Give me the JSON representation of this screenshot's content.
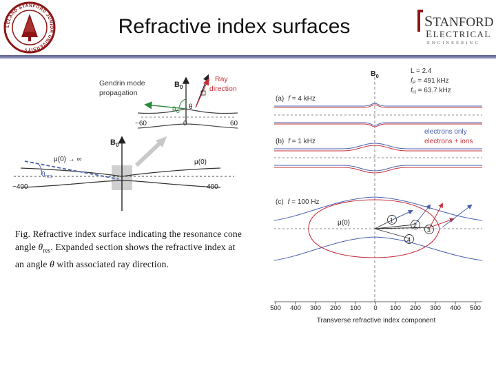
{
  "slide": {
    "title": "Refractive index surfaces",
    "caption_prefix": "Fig. Refractive index surface indicating the resonance cone angle ",
    "caption_theta_res": "θ",
    "caption_res_sub": "res",
    "caption_suffix": ". Expanded section shows the refractive index at an angle ",
    "caption_theta": "θ",
    "caption_end": " with associated ray direction."
  },
  "seal": {
    "ring_text": "LELAND STANFORD JUNIOR UNIVERSITY"
  },
  "logo": {
    "word1_initial": "S",
    "word1_rest": "TANFORD",
    "word2_initial": "E",
    "word2_rest": "LECTRICAL",
    "word3": "ENGINEERING"
  },
  "left_figure": {
    "b0": "B",
    "b0_sub": "0",
    "gendrin_line1": "Gendrin mode",
    "gendrin_line2": "propagation",
    "ray_line1": "Ray",
    "ray_line2": "direction",
    "theta_g": "θ",
    "theta_g_sub": "G",
    "theta": "θ",
    "zoom_axis": [
      "−60",
      "0",
      "60"
    ],
    "mu_inf": "μ(0) → ∞",
    "mu_zero": "μ(0)",
    "theta_res": "θ",
    "theta_res_sub": "res",
    "main_axis": [
      "−400",
      "400"
    ]
  },
  "right_figure": {
    "b0": "B",
    "b0_sub": "0",
    "params": {
      "l": "L = 2.4",
      "fp": "f",
      "fp_sub": "P",
      "fp_val": " = 491 kHz",
      "fh": "f",
      "fh_sub": "H",
      "fh_val": " = 63.7 kHz"
    },
    "panel_a": "(a)",
    "panel_a_f": "f",
    "panel_a_val": " = 4 kHz",
    "panel_b": "(b)",
    "panel_b_f": "f",
    "panel_b_val": " = 1 kHz",
    "panel_c": "(c)",
    "panel_c_f": "f",
    "panel_c_val": " = 100 Hz",
    "legend_electrons": "electrons only",
    "legend_ions": "electrons + ions",
    "mu": "μ(0)",
    "markers": [
      "1",
      "2",
      "3",
      "4"
    ],
    "x_ticks": [
      "500",
      "400",
      "300",
      "200",
      "100",
      "0",
      "100",
      "200",
      "300",
      "400",
      "500"
    ],
    "x_label": "Transverse refractive index component"
  },
  "colors": {
    "blue": "#4a5fb0",
    "red": "#c8303a",
    "green": "#2a8a3a",
    "gray": "#555555"
  }
}
